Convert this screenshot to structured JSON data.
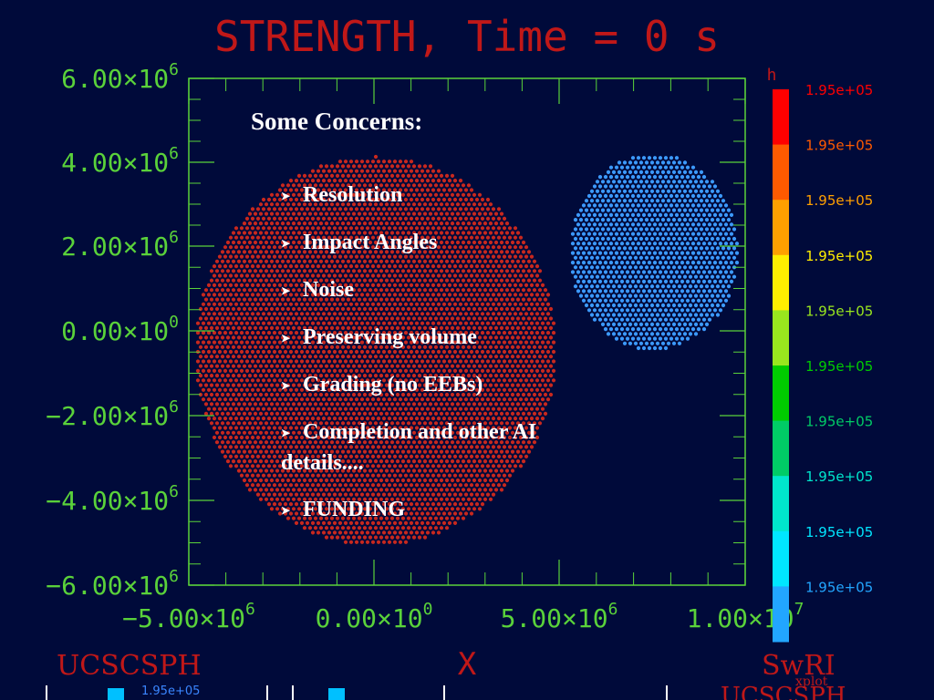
{
  "slide": {
    "plot_title": "STRENGTH, Time = 0 s",
    "concerns_title": "Some Concerns:",
    "concerns": [
      "Resolution",
      "Impact Angles",
      "Noise",
      "Preserving volume",
      "Grading (no EEBs)",
      "Completion and other AI details....",
      "FUNDING"
    ],
    "bullet_icon": "arrow-bullet-icon"
  },
  "plot": {
    "y_ticks": [
      {
        "mant": "6.00",
        "exp": "6"
      },
      {
        "mant": "4.00",
        "exp": "6"
      },
      {
        "mant": "2.00",
        "exp": "6"
      },
      {
        "mant": "0.00",
        "exp": "0"
      },
      {
        "mant": "−2.00",
        "exp": "6"
      },
      {
        "mant": "−4.00",
        "exp": "6"
      },
      {
        "mant": "−6.00",
        "exp": "6"
      }
    ],
    "x_ticks": [
      {
        "mant": "−5.00",
        "exp": "6"
      },
      {
        "mant": "0.00",
        "exp": "0"
      },
      {
        "mant": "5.00",
        "exp": "6"
      },
      {
        "mant": "1.00",
        "exp": "7"
      }
    ],
    "x_label": "X",
    "colorbar_title": "h",
    "colorbar_labels": [
      "1.95e+05",
      "1.95e+05",
      "1.95e+05",
      "1.95e+05",
      "1.95e+05",
      "1.95e+05",
      "1.95e+05",
      "1.95e+05",
      "1.95e+05",
      "1.95e+05"
    ],
    "colorbar_colors": [
      "#ff0000",
      "#ff5a00",
      "#ffa000",
      "#ffee00",
      "#99e61e",
      "#00cc00",
      "#00cc66",
      "#00e6cc",
      "#00e6ff",
      "#22a6ff"
    ],
    "footer_left": "UCSCSPH",
    "footer_right": "SwRI",
    "footer_tag": "xplot",
    "bottom_strip_label": "1.95e+05",
    "bottom_strip_right": "UCSCSPH",
    "axis_color": "#5ad23a",
    "label_color": "#c01818"
  }
}
